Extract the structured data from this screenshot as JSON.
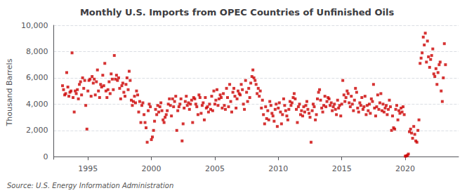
{
  "chart_data": {
    "type": "scatter",
    "title": "Monthly U.S. Imports from OPEC Countries of Unfinished Oils",
    "ylabel": "Thousand Barrels",
    "annotations": [
      "Source: U.S. Energy Information Administration"
    ],
    "color": "#CC0000",
    "marker": "square",
    "grid": true,
    "xlim": [
      1992.3,
      2024.2
    ],
    "ylim": [
      -200,
      10000
    ],
    "xticks": [
      1995,
      2000,
      2005,
      2010,
      2015,
      2020
    ],
    "yticks": [
      0,
      {
        "value": 2000,
        "label": "2,000"
      },
      {
        "value": 4000,
        "label": "4,000"
      },
      {
        "value": 6000,
        "label": "6,000"
      },
      {
        "value": 8000,
        "label": "8,000"
      },
      {
        "value": 10000,
        "label": "10,000"
      }
    ],
    "x": [
      1993.0,
      1993.08,
      1993.17,
      1993.25,
      1993.33,
      1993.42,
      1993.5,
      1993.58,
      1993.67,
      1993.75,
      1993.83,
      1993.92,
      1994.0,
      1994.08,
      1994.17,
      1994.25,
      1994.33,
      1994.42,
      1994.5,
      1994.58,
      1994.67,
      1994.75,
      1994.83,
      1994.92,
      1995.0,
      1995.08,
      1995.17,
      1995.25,
      1995.33,
      1995.42,
      1995.5,
      1995.58,
      1995.67,
      1995.75,
      1995.83,
      1995.92,
      1996.0,
      1996.08,
      1996.17,
      1996.25,
      1996.33,
      1996.42,
      1996.5,
      1996.58,
      1996.67,
      1996.75,
      1996.83,
      1996.92,
      1997.0,
      1997.08,
      1997.17,
      1997.25,
      1997.33,
      1997.42,
      1997.5,
      1997.58,
      1997.67,
      1997.75,
      1997.83,
      1997.92,
      1998.0,
      1998.08,
      1998.17,
      1998.25,
      1998.33,
      1998.42,
      1998.5,
      1998.58,
      1998.67,
      1998.75,
      1998.83,
      1998.92,
      1999.0,
      1999.08,
      1999.17,
      1999.25,
      1999.33,
      1999.42,
      1999.5,
      1999.58,
      1999.67,
      1999.75,
      1999.83,
      1999.92,
      2000.0,
      2000.08,
      2000.17,
      2000.25,
      2000.33,
      2000.42,
      2000.5,
      2000.58,
      2000.67,
      2000.75,
      2000.83,
      2000.92,
      2001.0,
      2001.08,
      2001.17,
      2001.25,
      2001.33,
      2001.42,
      2001.5,
      2001.58,
      2001.67,
      2001.75,
      2001.83,
      2001.92,
      2002.0,
      2002.08,
      2002.17,
      2002.25,
      2002.33,
      2002.42,
      2002.5,
      2002.58,
      2002.67,
      2002.75,
      2002.83,
      2002.92,
      2003.0,
      2003.08,
      2003.17,
      2003.25,
      2003.33,
      2003.42,
      2003.5,
      2003.58,
      2003.67,
      2003.75,
      2003.83,
      2003.92,
      2004.0,
      2004.08,
      2004.17,
      2004.25,
      2004.33,
      2004.42,
      2004.5,
      2004.58,
      2004.67,
      2004.75,
      2004.83,
      2004.92,
      2005.0,
      2005.08,
      2005.17,
      2005.25,
      2005.33,
      2005.42,
      2005.5,
      2005.58,
      2005.67,
      2005.75,
      2005.83,
      2005.92,
      2006.0,
      2006.08,
      2006.17,
      2006.25,
      2006.33,
      2006.42,
      2006.5,
      2006.58,
      2006.67,
      2006.75,
      2006.83,
      2006.92,
      2007.0,
      2007.08,
      2007.17,
      2007.25,
      2007.33,
      2007.42,
      2007.5,
      2007.58,
      2007.67,
      2007.75,
      2007.83,
      2007.92,
      2008.0,
      2008.08,
      2008.17,
      2008.25,
      2008.33,
      2008.42,
      2008.5,
      2008.58,
      2008.67,
      2008.75,
      2008.83,
      2008.92,
      2009.0,
      2009.08,
      2009.17,
      2009.25,
      2009.33,
      2009.42,
      2009.5,
      2009.58,
      2009.67,
      2009.75,
      2009.83,
      2009.92,
      2010.0,
      2010.08,
      2010.17,
      2010.25,
      2010.33,
      2010.42,
      2010.5,
      2010.58,
      2010.67,
      2010.75,
      2010.83,
      2010.92,
      2011.0,
      2011.08,
      2011.17,
      2011.25,
      2011.33,
      2011.42,
      2011.5,
      2011.58,
      2011.67,
      2011.75,
      2011.83,
      2011.92,
      2012.0,
      2012.08,
      2012.17,
      2012.25,
      2012.33,
      2012.42,
      2012.5,
      2012.58,
      2012.67,
      2012.75,
      2012.83,
      2012.92,
      2013.0,
      2013.08,
      2013.17,
      2013.25,
      2013.33,
      2013.42,
      2013.5,
      2013.58,
      2013.67,
      2013.75,
      2013.83,
      2013.92,
      2014.0,
      2014.08,
      2014.17,
      2014.25,
      2014.33,
      2014.42,
      2014.5,
      2014.58,
      2014.67,
      2014.75,
      2014.83,
      2014.92,
      2015.0,
      2015.08,
      2015.17,
      2015.25,
      2015.33,
      2015.42,
      2015.5,
      2015.58,
      2015.67,
      2015.75,
      2015.83,
      2015.92,
      2016.0,
      2016.08,
      2016.17,
      2016.25,
      2016.33,
      2016.42,
      2016.5,
      2016.58,
      2016.67,
      2016.75,
      2016.83,
      2016.92,
      2017.0,
      2017.08,
      2017.17,
      2017.25,
      2017.33,
      2017.42,
      2017.5,
      2017.58,
      2017.67,
      2017.75,
      2017.83,
      2017.92,
      2018.0,
      2018.08,
      2018.17,
      2018.25,
      2018.33,
      2018.42,
      2018.5,
      2018.58,
      2018.67,
      2018.75,
      2018.83,
      2018.92,
      2019.0,
      2019.08,
      2019.17,
      2019.25,
      2019.33,
      2019.42,
      2019.5,
      2019.58,
      2019.67,
      2019.75,
      2019.83,
      2019.92,
      2020.0,
      2020.08,
      2020.17,
      2020.25,
      2020.33,
      2020.42,
      2020.5,
      2020.58,
      2020.67,
      2020.75,
      2020.83,
      2020.92,
      2021.0,
      2021.08,
      2021.17,
      2021.25,
      2021.33,
      2021.42,
      2021.5,
      2021.58,
      2021.67,
      2021.75,
      2021.83,
      2021.92,
      2022.0,
      2022.08,
      2022.17,
      2022.25,
      2022.33,
      2022.42,
      2022.5,
      2022.58,
      2022.67,
      2022.75,
      2022.83,
      2022.92,
      2023.0,
      2023.08,
      2023.17
    ],
    "values": [
      5400,
      5100,
      4700,
      4800,
      6400,
      5300,
      4600,
      4900,
      5000,
      7900,
      4500,
      3400,
      5000,
      4800,
      5100,
      4400,
      5500,
      5700,
      4700,
      6000,
      5200,
      5800,
      3900,
      2100,
      5000,
      5800,
      5900,
      4600,
      6100,
      5600,
      5900,
      4700,
      5700,
      6600,
      5000,
      4500,
      5500,
      5300,
      6200,
      5400,
      7100,
      5000,
      4500,
      5100,
      5700,
      4800,
      6300,
      5900,
      5100,
      7700,
      5900,
      6200,
      5800,
      6000,
      5200,
      4400,
      5400,
      5600,
      4900,
      4600,
      5500,
      6000,
      5100,
      6500,
      5800,
      4300,
      3900,
      4200,
      4600,
      4100,
      5000,
      4700,
      3400,
      4200,
      2600,
      3900,
      4100,
      3200,
      2600,
      2200,
      1100,
      3500,
      4000,
      3800,
      1300,
      1500,
      2000,
      2700,
      3600,
      3200,
      3900,
      3400,
      3800,
      4100,
      3500,
      2800,
      2600,
      3000,
      3200,
      3500,
      4000,
      4400,
      3900,
      3100,
      4400,
      3800,
      4200,
      4600,
      2000,
      3500,
      3800,
      4000,
      4400,
      1200,
      2500,
      3700,
      4200,
      4600,
      3900,
      4100,
      3600,
      4000,
      4300,
      2600,
      4500,
      4400,
      4000,
      3800,
      3200,
      4700,
      4500,
      3300,
      3900,
      4100,
      2800,
      4500,
      3700,
      3800,
      3400,
      4000,
      3600,
      4600,
      3500,
      5000,
      4000,
      4300,
      5100,
      3900,
      4400,
      4700,
      4500,
      3700,
      4800,
      3900,
      3600,
      5200,
      4500,
      3800,
      5500,
      4200,
      3400,
      4900,
      5200,
      4600,
      3700,
      4400,
      5000,
      4800,
      4700,
      5500,
      5100,
      4000,
      3600,
      5800,
      4900,
      4200,
      5200,
      4500,
      5600,
      6100,
      6600,
      6000,
      5800,
      5500,
      4800,
      5200,
      4600,
      5000,
      3700,
      4300,
      3200,
      2500,
      3800,
      2900,
      3500,
      2800,
      4200,
      3900,
      3300,
      3100,
      2700,
      3600,
      4000,
      2300,
      3700,
      4100,
      3400,
      2500,
      3200,
      4400,
      3900,
      3500,
      3100,
      2800,
      3600,
      4200,
      3900,
      4100,
      4500,
      4800,
      4400,
      3600,
      2600,
      3800,
      4000,
      3200,
      3500,
      3100,
      3800,
      3400,
      3900,
      4200,
      3600,
      3300,
      3000,
      1100,
      3500,
      4000,
      3800,
      2800,
      3200,
      4400,
      4900,
      5100,
      4300,
      3700,
      3400,
      3900,
      4600,
      3800,
      4200,
      4500,
      4400,
      3900,
      4100,
      3500,
      3800,
      4000,
      3600,
      3200,
      4300,
      3700,
      3900,
      3100,
      4000,
      5800,
      4700,
      4200,
      4500,
      5000,
      4800,
      4100,
      3800,
      4600,
      4000,
      3500,
      4300,
      5200,
      4900,
      3700,
      3400,
      4100,
      3900,
      4500,
      3600,
      3800,
      4600,
      3200,
      3900,
      3500,
      4000,
      3300,
      4400,
      4200,
      5500,
      3700,
      3100,
      3800,
      4700,
      3600,
      4100,
      4800,
      3500,
      4000,
      3400,
      3700,
      3900,
      3200,
      3600,
      4300,
      3800,
      2000,
      3100,
      2200,
      2100,
      3600,
      3900,
      2800,
      3500,
      3300,
      3700,
      3400,
      3800,
      3200,
      40,
      50,
      100,
      200,
      1900,
      2100,
      1800,
      1400,
      2300,
      1700,
      1200,
      1100,
      2000,
      2800,
      7100,
      7500,
      7900,
      9100,
      8500,
      9400,
      7200,
      8800,
      7600,
      6800,
      7400,
      7700,
      8200,
      6300,
      6100,
      6700,
      5500,
      6400,
      7000,
      7200,
      5000,
      4200,
      6000,
      8600,
      7000
    ]
  }
}
